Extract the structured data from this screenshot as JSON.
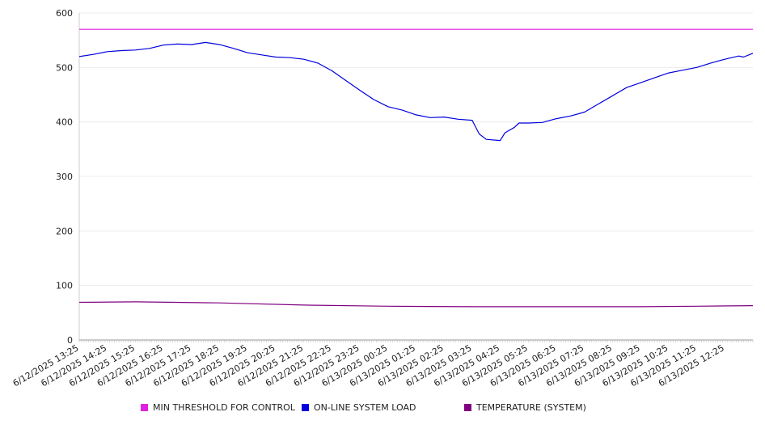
{
  "chart_data": {
    "type": "line",
    "title": "",
    "xlabel": "",
    "ylabel": "",
    "ylim": [
      0,
      600
    ],
    "y_ticks": [
      0,
      100,
      200,
      300,
      400,
      500,
      600
    ],
    "grid": true,
    "legend_position": "bottom",
    "x_tick_labels": [
      "6/12/2025 13:25",
      "6/12/2025 14:25",
      "6/12/2025 15:25",
      "6/12/2025 16:25",
      "6/12/2025 17:25",
      "6/12/2025 18:25",
      "6/12/2025 19:25",
      "6/12/2025 20:25",
      "6/12/2025 21:25",
      "6/12/2025 22:25",
      "6/12/2025 23:25",
      "6/13/2025 00:25",
      "6/13/2025 01:25",
      "6/13/2025 02:25",
      "6/13/2025 03:25",
      "6/13/2025 04:25",
      "6/13/2025 05:25",
      "6/13/2025 06:25",
      "6/13/2025 07:25",
      "6/13/2025 08:25",
      "6/13/2025 09:25",
      "6/13/2025 10:25",
      "6/13/2025 11:25",
      "6/13/2025 12:25"
    ],
    "x_range": [
      "6/12/2025 13:25",
      "6/13/2025 13:25"
    ],
    "series": [
      {
        "name": "MIN THRESHOLD FOR CONTROL",
        "color": "#e020e0",
        "points": [
          [
            "6/12/2025 13:25",
            570
          ],
          [
            "6/13/2025 13:25",
            570
          ]
        ]
      },
      {
        "name": "ON-LINE SYSTEM LOAD",
        "color": "#0000dd",
        "points": [
          [
            "6/12/2025 13:25",
            520
          ],
          [
            "6/12/2025 13:55",
            524
          ],
          [
            "6/12/2025 14:25",
            529
          ],
          [
            "6/12/2025 14:55",
            531
          ],
          [
            "6/12/2025 15:25",
            532
          ],
          [
            "6/12/2025 15:55",
            535
          ],
          [
            "6/12/2025 16:25",
            541
          ],
          [
            "6/12/2025 16:55",
            543
          ],
          [
            "6/12/2025 17:25",
            542
          ],
          [
            "6/12/2025 17:55",
            546
          ],
          [
            "6/12/2025 18:25",
            542
          ],
          [
            "6/12/2025 18:55",
            535
          ],
          [
            "6/12/2025 19:25",
            527
          ],
          [
            "6/12/2025 19:55",
            523
          ],
          [
            "6/12/2025 20:25",
            519
          ],
          [
            "6/12/2025 20:55",
            518
          ],
          [
            "6/12/2025 21:25",
            515
          ],
          [
            "6/12/2025 21:55",
            508
          ],
          [
            "6/12/2025 22:25",
            494
          ],
          [
            "6/12/2025 22:55",
            476
          ],
          [
            "6/12/2025 23:25",
            458
          ],
          [
            "6/12/2025 23:55",
            441
          ],
          [
            "6/13/2025 00:25",
            428
          ],
          [
            "6/13/2025 00:55",
            422
          ],
          [
            "6/13/2025 01:25",
            413
          ],
          [
            "6/13/2025 01:55",
            408
          ],
          [
            "6/13/2025 02:25",
            409
          ],
          [
            "6/13/2025 02:55",
            405
          ],
          [
            "6/13/2025 03:25",
            403
          ],
          [
            "6/13/2025 03:40",
            378
          ],
          [
            "6/13/2025 03:55",
            368
          ],
          [
            "6/13/2025 04:25",
            366
          ],
          [
            "6/13/2025 04:35",
            380
          ],
          [
            "6/13/2025 04:55",
            390
          ],
          [
            "6/13/2025 05:05",
            398
          ],
          [
            "6/13/2025 05:25",
            398
          ],
          [
            "6/13/2025 05:55",
            399
          ],
          [
            "6/13/2025 06:25",
            406
          ],
          [
            "6/13/2025 06:55",
            411
          ],
          [
            "6/13/2025 07:25",
            418
          ],
          [
            "6/13/2025 07:55",
            433
          ],
          [
            "6/13/2025 08:25",
            448
          ],
          [
            "6/13/2025 08:55",
            463
          ],
          [
            "6/13/2025 09:25",
            472
          ],
          [
            "6/13/2025 09:55",
            481
          ],
          [
            "6/13/2025 10:25",
            490
          ],
          [
            "6/13/2025 10:55",
            495
          ],
          [
            "6/13/2025 11:25",
            500
          ],
          [
            "6/13/2025 11:55",
            508
          ],
          [
            "6/13/2025 12:25",
            515
          ],
          [
            "6/13/2025 12:55",
            521
          ],
          [
            "6/13/2025 13:05",
            519
          ],
          [
            "6/13/2025 13:25",
            526
          ]
        ]
      },
      {
        "name": "TEMPERATURE (SYSTEM)",
        "color": "#800080",
        "points": [
          [
            "6/12/2025 13:25",
            69
          ],
          [
            "6/12/2025 15:25",
            70
          ],
          [
            "6/12/2025 18:25",
            68
          ],
          [
            "6/12/2025 21:25",
            64
          ],
          [
            "6/13/2025 00:25",
            62
          ],
          [
            "6/13/2025 03:25",
            61
          ],
          [
            "6/13/2025 06:25",
            61
          ],
          [
            "6/13/2025 09:25",
            61
          ],
          [
            "6/13/2025 11:25",
            62
          ],
          [
            "6/13/2025 13:25",
            63
          ]
        ]
      }
    ]
  }
}
